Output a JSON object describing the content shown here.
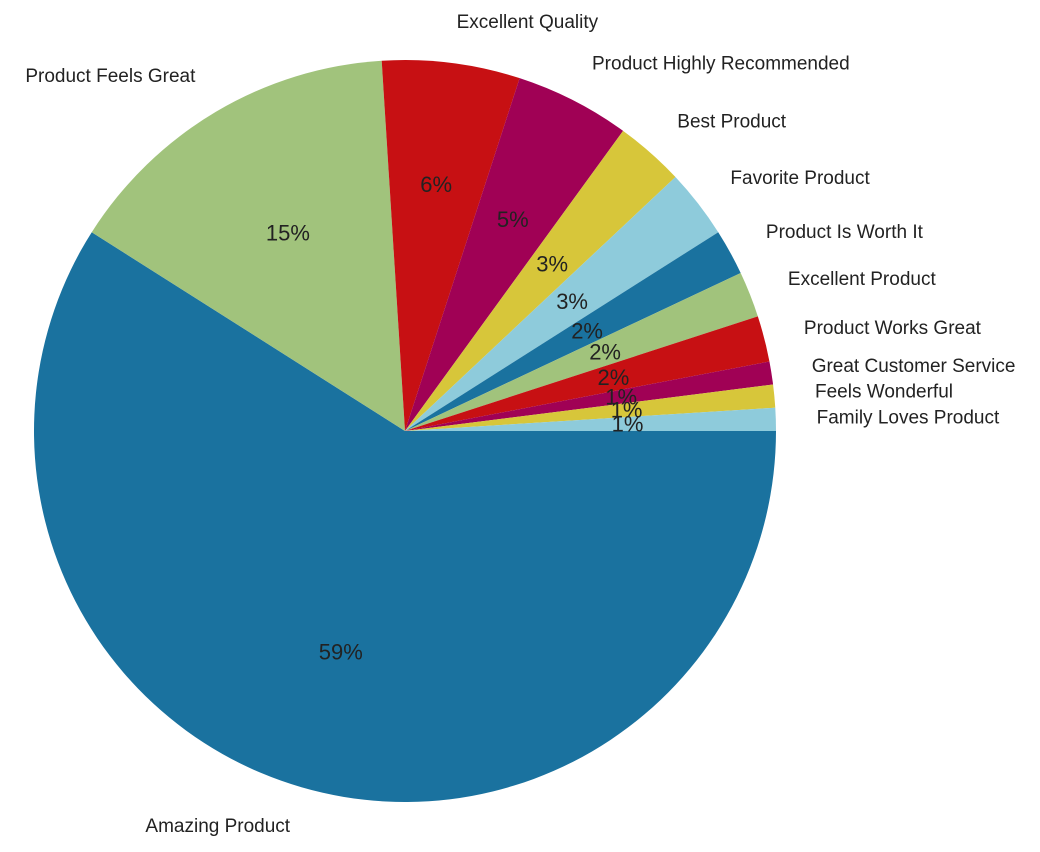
{
  "chart_data": {
    "type": "pie",
    "categories": [
      "Amazing Product",
      "Product Feels Great",
      "Excellent Quality",
      "Product Highly Recommended",
      "Best Product",
      "Favorite Product",
      "Product Is Worth It",
      "Excellent Product",
      "Product Works Great",
      "Great Customer Service",
      "Feels Wonderful",
      "Family Loves Product"
    ],
    "values": [
      59,
      15,
      6,
      5,
      3,
      3,
      2,
      2,
      2,
      1,
      1,
      1
    ],
    "value_labels": [
      "59%",
      "15%",
      "6%",
      "5%",
      "3%",
      "3%",
      "2%",
      "2%",
      "2%",
      "1%",
      "1%",
      "1%"
    ],
    "colors": [
      "#1a729f",
      "#a1c37c",
      "#c71013",
      "#a00155",
      "#d7c63a",
      "#8ecbdb",
      "#1a729f",
      "#a1c37c",
      "#c71013",
      "#a00155",
      "#d7c63a",
      "#8ecbdb"
    ],
    "start": "3 o'clock",
    "direction": "clockwise"
  }
}
